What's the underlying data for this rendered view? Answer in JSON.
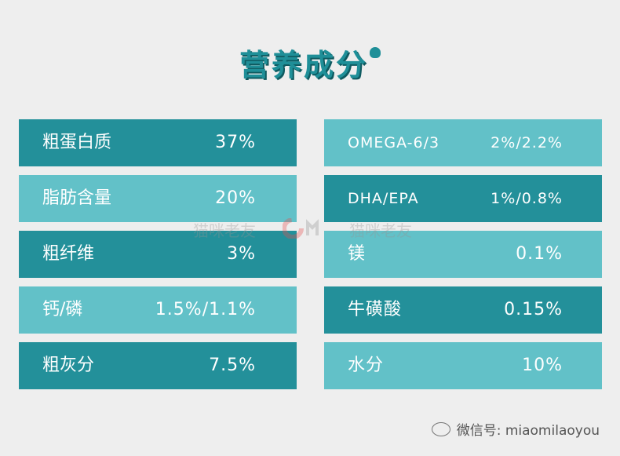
{
  "title": "营养成分",
  "left_rows": [
    {
      "label": "粗蛋白质",
      "value": "37%"
    },
    {
      "label": "脂肪含量",
      "value": "20%"
    },
    {
      "label": "粗纤维",
      "value": "3%"
    },
    {
      "label": "钙/磷",
      "value": "1.5%/1.1%"
    },
    {
      "label": "粗灰分",
      "value": "7.5%"
    }
  ],
  "right_rows": [
    {
      "label": "OMEGA-6/3",
      "value": "2%/2.2%"
    },
    {
      "label": "DHA/EPA",
      "value": "1%/0.8%"
    },
    {
      "label": "镁",
      "value": "0.1%"
    },
    {
      "label": "牛磺酸",
      "value": "0.15%"
    },
    {
      "label": "水分",
      "value": "10%"
    }
  ],
  "watermark": {
    "left": "猫咪老友",
    "right": "猫咪老友"
  },
  "footer": {
    "wechat": "微信号: miaomilaoyou"
  },
  "colors": {
    "dark_row": "#23909a",
    "light_row": "#62c1c8",
    "title": "#1f8f98",
    "background": "#eeeeee"
  }
}
